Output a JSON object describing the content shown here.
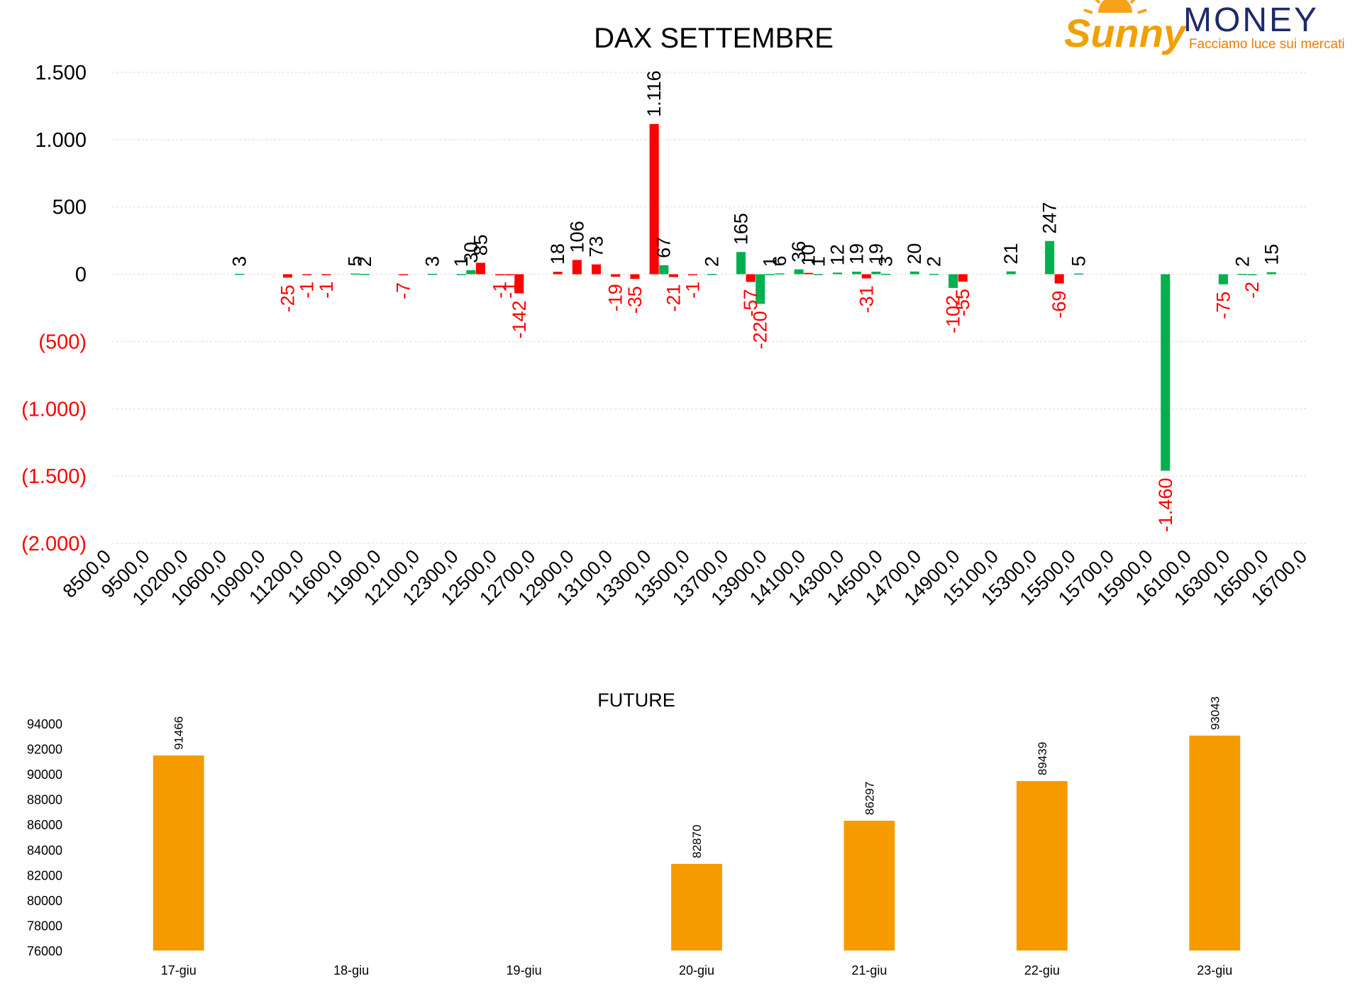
{
  "brand": {
    "logo_script": "Sunny",
    "logo_word": "MONEY",
    "tagline": "Facciamo luce sui mercati"
  },
  "colors": {
    "positive": "#00b050",
    "negative": "#ff0000",
    "future_bar": "#f59b00",
    "grid": "#d9d9d9",
    "axis_negative_label": "#ff0000"
  },
  "chart_data": [
    {
      "type": "bar",
      "title": "DAX SETTEMBRE",
      "xlabel": "",
      "ylabel": "",
      "ylim": [
        -2000,
        1500
      ],
      "yticks": [
        1500,
        1000,
        500,
        0,
        -500,
        -1000,
        -1500,
        -2000
      ],
      "ytick_labels": [
        "1.500",
        "1.000",
        "500",
        "0",
        "(500)",
        "(1.000)",
        "(1.500)",
        "(2.000)"
      ],
      "grid": true,
      "legend": "none",
      "categories": [
        "8500,0",
        "9500,0",
        "10200,0",
        "10600,0",
        "10900,0",
        "11200,0",
        "11600,0",
        "11900,0",
        "12100,0",
        "12300,0",
        "12500,0",
        "12700,0",
        "12900,0",
        "13100,0",
        "13300,0",
        "13500,0",
        "13700,0",
        "13900,0",
        "14100,0",
        "14300,0",
        "14500,0",
        "14700,0",
        "14900,0",
        "15100,0",
        "15300,0",
        "15500,0",
        "15700,0",
        "15900,0",
        "16100,0",
        "16300,0",
        "16500,0",
        "16700,0"
      ],
      "bars": [
        {
          "slot": 3.3,
          "value": 3,
          "color": "positive",
          "label": "3"
        },
        {
          "slot": 4.55,
          "value": -25,
          "color": "negative",
          "label": "-25"
        },
        {
          "slot": 5.05,
          "value": -1,
          "color": "negative",
          "label": "-1"
        },
        {
          "slot": 5.55,
          "value": -1,
          "color": "negative",
          "label": "-1"
        },
        {
          "slot": 6.3,
          "value": 5,
          "color": "positive",
          "label": "5"
        },
        {
          "slot": 6.55,
          "value": 2,
          "color": "positive",
          "label": "2"
        },
        {
          "slot": 7.55,
          "value": -7,
          "color": "negative",
          "label": "-7"
        },
        {
          "slot": 8.3,
          "value": 3,
          "color": "positive",
          "label": "3"
        },
        {
          "slot": 9.05,
          "value": 1,
          "color": "positive",
          "label": "1"
        },
        {
          "slot": 9.3,
          "value": 30,
          "color": "positive",
          "label": "30"
        },
        {
          "slot": 9.55,
          "value": 85,
          "color": "negative",
          "label": "85"
        },
        {
          "slot": 10.05,
          "value": -1,
          "color": "negative",
          "label": "-1"
        },
        {
          "slot": 10.3,
          "value": -1,
          "color": "negative",
          "label": "-1"
        },
        {
          "slot": 10.55,
          "value": -142,
          "color": "negative",
          "label": "-142"
        },
        {
          "slot": 11.55,
          "value": 18,
          "color": "negative",
          "label": "18"
        },
        {
          "slot": 12.05,
          "value": 106,
          "color": "negative",
          "label": "106"
        },
        {
          "slot": 12.55,
          "value": 73,
          "color": "negative",
          "label": "73"
        },
        {
          "slot": 13.05,
          "value": -19,
          "color": "negative",
          "label": "-19"
        },
        {
          "slot": 13.55,
          "value": -35,
          "color": "negative",
          "label": "-35"
        },
        {
          "slot": 14.05,
          "value": 1116,
          "color": "negative",
          "label": "1.116"
        },
        {
          "slot": 14.3,
          "value": 67,
          "color": "positive",
          "label": "67"
        },
        {
          "slot": 14.55,
          "value": -21,
          "color": "negative",
          "label": "-21"
        },
        {
          "slot": 15.05,
          "value": -1,
          "color": "negative",
          "label": "-1"
        },
        {
          "slot": 15.55,
          "value": 2,
          "color": "positive",
          "label": "2"
        },
        {
          "slot": 16.3,
          "value": 165,
          "color": "positive",
          "label": "165"
        },
        {
          "slot": 16.55,
          "value": -57,
          "color": "negative",
          "label": "-57"
        },
        {
          "slot": 16.8,
          "value": -220,
          "color": "positive",
          "label": "-220"
        },
        {
          "slot": 17.05,
          "value": 1,
          "color": "positive",
          "label": "1"
        },
        {
          "slot": 17.3,
          "value": 6,
          "color": "positive",
          "label": "6"
        },
        {
          "slot": 17.8,
          "value": 36,
          "color": "positive",
          "label": "36"
        },
        {
          "slot": 18.05,
          "value": 10,
          "color": "negative",
          "label": "10"
        },
        {
          "slot": 18.3,
          "value": 1,
          "color": "positive",
          "label": "1"
        },
        {
          "slot": 18.8,
          "value": 12,
          "color": "positive",
          "label": "12"
        },
        {
          "slot": 19.3,
          "value": 19,
          "color": "positive",
          "label": "19"
        },
        {
          "slot": 19.55,
          "value": -31,
          "color": "negative",
          "label": "-31"
        },
        {
          "slot": 19.8,
          "value": 19,
          "color": "positive",
          "label": "19"
        },
        {
          "slot": 20.05,
          "value": 3,
          "color": "positive",
          "label": "3"
        },
        {
          "slot": 20.8,
          "value": 20,
          "color": "positive",
          "label": "20"
        },
        {
          "slot": 21.3,
          "value": 2,
          "color": "positive",
          "label": "2"
        },
        {
          "slot": 21.8,
          "value": -102,
          "color": "positive",
          "label": "-102"
        },
        {
          "slot": 22.05,
          "value": -55,
          "color": "negative",
          "label": "-55"
        },
        {
          "slot": 23.3,
          "value": 21,
          "color": "positive",
          "label": "21"
        },
        {
          "slot": 24.3,
          "value": 247,
          "color": "positive",
          "label": "247"
        },
        {
          "slot": 24.55,
          "value": -69,
          "color": "negative",
          "label": "-69"
        },
        {
          "slot": 25.05,
          "value": 5,
          "color": "positive",
          "label": "5"
        },
        {
          "slot": 27.3,
          "value": -1460,
          "color": "positive",
          "label": "-1.460"
        },
        {
          "slot": 28.8,
          "value": -75,
          "color": "positive",
          "label": "-75"
        },
        {
          "slot": 29.3,
          "value": 2,
          "color": "positive",
          "label": "2"
        },
        {
          "slot": 29.55,
          "value": -2,
          "color": "positive",
          "label": "-2"
        },
        {
          "slot": 30.05,
          "value": 15,
          "color": "positive",
          "label": "15"
        }
      ]
    },
    {
      "type": "bar",
      "title": "FUTURE",
      "xlabel": "",
      "ylabel": "",
      "ylim": [
        76000,
        94000
      ],
      "yticks": [
        94000,
        92000,
        90000,
        88000,
        86000,
        84000,
        82000,
        80000,
        78000,
        76000
      ],
      "ytick_labels": [
        "94000",
        "92000",
        "90000",
        "88000",
        "86000",
        "84000",
        "82000",
        "80000",
        "78000",
        "76000"
      ],
      "grid": false,
      "legend": "none",
      "categories": [
        "17-giu",
        "18-giu",
        "19-giu",
        "20-giu",
        "21-giu",
        "22-giu",
        "23-giu"
      ],
      "values": [
        91466,
        null,
        null,
        82870,
        86297,
        89439,
        93043
      ],
      "value_labels": [
        "91466",
        "",
        "",
        "82870",
        "86297",
        "89439",
        "93043"
      ]
    }
  ]
}
